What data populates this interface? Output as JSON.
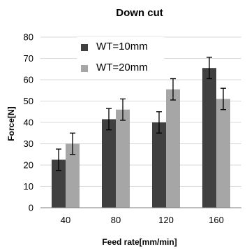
{
  "chart_data": {
    "type": "bar",
    "title": "Down cut",
    "xlabel": "Feed rate[mm/min]",
    "ylabel": "Force[N]",
    "categories": [
      "40",
      "80",
      "120",
      "160"
    ],
    "ylim": [
      0,
      80
    ],
    "yticks": [
      0,
      10,
      20,
      30,
      40,
      50,
      60,
      70,
      80
    ],
    "grid": true,
    "legend_position": "top-left",
    "series": [
      {
        "name": "WT=10mm",
        "color": "#404040",
        "values": [
          22.5,
          41.5,
          40,
          65.5
        ],
        "errors": [
          5,
          5,
          5,
          5
        ]
      },
      {
        "name": "WT=20mm",
        "color": "#a6a6a6",
        "values": [
          30,
          46,
          55.5,
          51
        ],
        "errors": [
          5,
          5,
          5,
          5
        ]
      }
    ]
  }
}
